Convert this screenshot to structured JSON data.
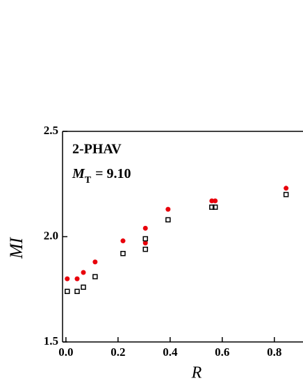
{
  "chart_data": {
    "type": "scatter",
    "xlabel": "R",
    "ylabel": "MI",
    "annotation": "2-PHAV",
    "parameter": {
      "symbol": "M",
      "subscript": "T",
      "text": "= 9.10"
    },
    "xlim": [
      -0.013,
      0.91
    ],
    "ylim": [
      1.5,
      2.5
    ],
    "xticks": [
      {
        "value": 0,
        "label": "0.0"
      },
      0.2,
      0.4,
      0.6,
      0.8
    ],
    "yticks": [
      1.5,
      {
        "value": 2,
        "label": "2.0"
      },
      2.5
    ],
    "series": [
      {
        "color": "#e8000b",
        "marker": "circle",
        "x": [
          0.005,
          0.043,
          0.067,
          0.112,
          0.219,
          0.305,
          0.305,
          0.392,
          0.56,
          0.573,
          0.845
        ],
        "values": [
          1.8,
          1.8,
          1.83,
          1.88,
          1.98,
          2.04,
          1.97,
          2.13,
          2.17,
          2.17,
          2.23
        ]
      },
      {
        "color": "#000000",
        "marker": "square",
        "x": [
          0.005,
          0.043,
          0.067,
          0.112,
          0.219,
          0.305,
          0.305,
          0.392,
          0.56,
          0.573,
          0.845
        ],
        "values": [
          1.74,
          1.74,
          1.76,
          1.81,
          1.92,
          1.99,
          1.94,
          2.08,
          2.14,
          2.14,
          2.2
        ]
      }
    ]
  }
}
